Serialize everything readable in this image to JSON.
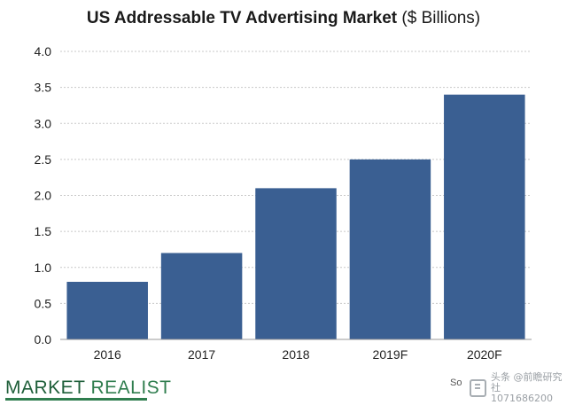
{
  "chart_data": {
    "type": "bar",
    "title": "US Addressable TV Advertising Market",
    "title_suffix": "($ Billions)",
    "categories": [
      "2016",
      "2017",
      "2018",
      "2019F",
      "2020F"
    ],
    "values": [
      0.8,
      1.2,
      2.1,
      2.5,
      3.4
    ],
    "ylim": [
      0,
      4.0
    ],
    "yticks": [
      "0.0",
      "0.5",
      "1.0",
      "1.5",
      "2.0",
      "2.5",
      "3.0",
      "3.5",
      "4.0"
    ],
    "xlabel": "",
    "ylabel": "",
    "grid": true,
    "bar_color": "#3a5f92"
  },
  "branding": {
    "logo_word1": "MARKET",
    "logo_word2": "REALIST",
    "logo_color": "#2f7d4e",
    "source_label": "So",
    "watermark_line1": "头条 @前瞻研究社",
    "watermark_line2": "1071686200"
  }
}
